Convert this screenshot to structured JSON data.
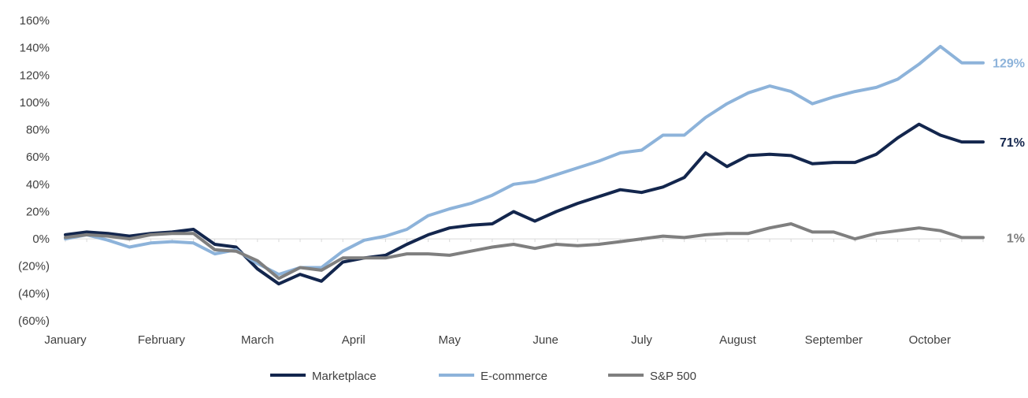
{
  "chart_data": {
    "type": "line",
    "title": "",
    "xlabel": "",
    "ylabel": "",
    "ylim": [
      -60,
      160
    ],
    "y_ticks": [
      160,
      140,
      120,
      100,
      80,
      60,
      40,
      20,
      0,
      -20,
      -40,
      -60
    ],
    "y_tick_labels": [
      "160%",
      "140%",
      "120%",
      "100%",
      "80%",
      "60%",
      "40%",
      "20%",
      "0%",
      "(20%)",
      "(40%)",
      "(60%)"
    ],
    "x_tick_labels": [
      "January",
      "February",
      "March",
      "April",
      "May",
      "June",
      "July",
      "August",
      "September",
      "October"
    ],
    "x_tick_points": [
      0,
      4.5,
      9,
      13.5,
      18,
      22.5,
      27,
      31.5,
      36,
      40.5
    ],
    "x_count": 44,
    "legend_position": "bottom",
    "series": [
      {
        "name": "Marketplace",
        "color": "#13264d",
        "end_label": "71%",
        "values": [
          3,
          5,
          4,
          2,
          4,
          5,
          7,
          -4,
          -6,
          -22,
          -33,
          -26,
          -31,
          -17,
          -14,
          -12,
          -4,
          3,
          8,
          10,
          11,
          20,
          13,
          20,
          26,
          31,
          36,
          34,
          38,
          45,
          63,
          53,
          61,
          62,
          61,
          55,
          56,
          56,
          62,
          74,
          84,
          76,
          71,
          71
        ]
      },
      {
        "name": "E-commerce",
        "color": "#8db3da",
        "end_label": "129%",
        "values": [
          0,
          3,
          -1,
          -6,
          -3,
          -2,
          -3,
          -11,
          -8,
          -18,
          -26,
          -21,
          -21,
          -9,
          -1,
          2,
          7,
          17,
          22,
          26,
          32,
          40,
          42,
          47,
          52,
          57,
          63,
          65,
          76,
          76,
          89,
          99,
          107,
          112,
          108,
          99,
          104,
          108,
          111,
          117,
          128,
          141,
          129,
          129
        ]
      },
      {
        "name": "S&P 500",
        "color": "#7f7f7f",
        "end_label": "1%",
        "values": [
          1,
          3,
          2,
          0,
          3,
          4,
          4,
          -8,
          -9,
          -16,
          -29,
          -21,
          -23,
          -14,
          -14,
          -14,
          -11,
          -11,
          -12,
          -9,
          -6,
          -4,
          -7,
          -4,
          -5,
          -4,
          -2,
          0,
          2,
          1,
          3,
          4,
          4,
          8,
          11,
          5,
          5,
          0,
          4,
          6,
          8,
          6,
          1,
          1
        ]
      }
    ]
  }
}
